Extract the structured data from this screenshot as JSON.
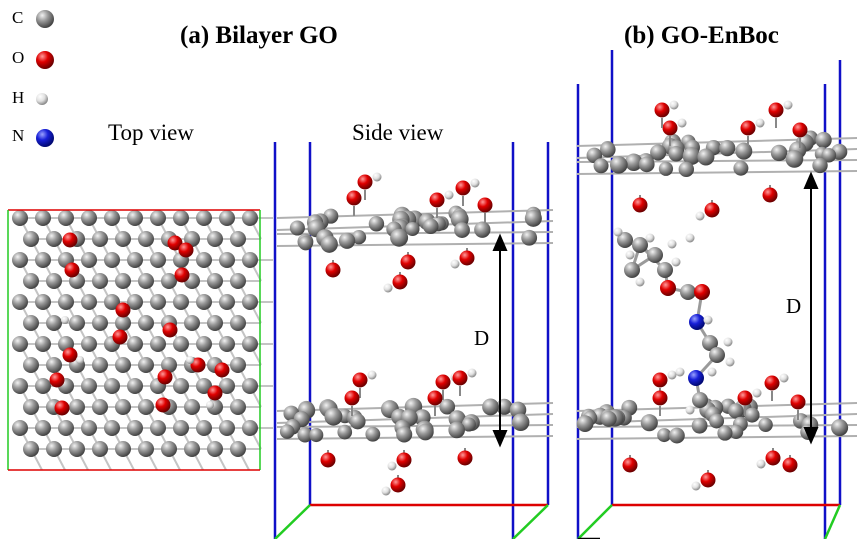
{
  "legend": [
    {
      "symbol": "C",
      "color": "#808080"
    },
    {
      "symbol": "O",
      "color": "#d40000"
    },
    {
      "symbol": "H",
      "color": "#e6e6e6"
    },
    {
      "symbol": "N",
      "color": "#1018c8"
    }
  ],
  "panel_a": {
    "title": "(a) Bilayer GO",
    "top_view_label": "Top view",
    "side_view_label": "Side view",
    "distance_label": "D"
  },
  "panel_b": {
    "title": "(b) GO-EnBoc",
    "distance_label": "D"
  },
  "colors": {
    "carbon": "#808080",
    "oxygen": "#d40000",
    "hydrogen": "#e6e6e6",
    "nitrogen": "#1018c8",
    "cell_blue": "#1010c8",
    "cell_red": "#dd0000",
    "cell_green": "#22cc22",
    "cell_black": "#000000"
  }
}
